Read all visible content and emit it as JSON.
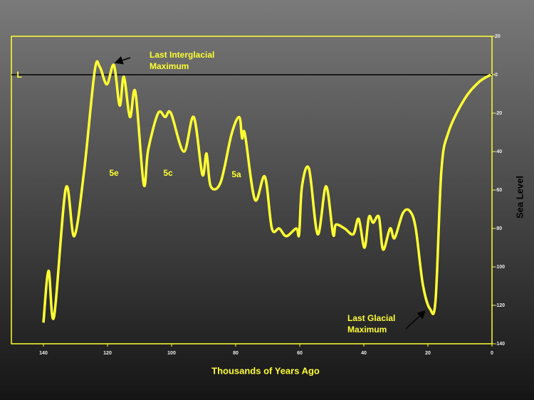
{
  "chart_data": {
    "type": "line",
    "x_label": "Thousands of Years Ago",
    "y_label": "Sea Level",
    "xlim": [
      150,
      0
    ],
    "xticks": [
      140,
      120,
      100,
      80,
      60,
      40,
      20,
      0
    ],
    "ylim": [
      -140,
      20
    ],
    "yticks": [
      20,
      0,
      -20,
      -40,
      -60,
      -80,
      -100,
      -120,
      -140
    ],
    "hline": 0,
    "series": [
      {
        "name": "Sea Level",
        "color": "#ffff33",
        "x": [
          140,
          138.4,
          136.7,
          133,
          130.4,
          127.3,
          124,
          122.4,
          120.2,
          118,
          116.2,
          114.9,
          113,
          111.3,
          108.7,
          107.3,
          104.2,
          102,
          100.2,
          96.2,
          93.1,
          90.4,
          89.1,
          87.8,
          84.7,
          81.3,
          78.9,
          78,
          77.1,
          74,
          70.9,
          68.7,
          66.4,
          64.2,
          61.1,
          60.2,
          59.3,
          57.1,
          54.4,
          51.8,
          49.6,
          48.7,
          46,
          43.3,
          41.6,
          39.8,
          38.4,
          37.1,
          35.3,
          34,
          31.8,
          30.4,
          27.8,
          25.6,
          23.8,
          21.6,
          19.3,
          17.6,
          15.8,
          13.6,
          8.7,
          4.2,
          0.4
        ],
        "values": [
          -129,
          -102,
          -126,
          -59,
          -84,
          -50,
          2,
          4,
          -5,
          5,
          -16,
          -1,
          -22,
          -9,
          -57,
          -39,
          -20,
          -22,
          -20,
          -40,
          -22,
          -52,
          -41,
          -58,
          -56,
          -31,
          -22,
          -33,
          -31,
          -65,
          -53,
          -80,
          -80,
          -84,
          -80,
          -83,
          -58,
          -49,
          -83,
          -58,
          -83,
          -78,
          -80,
          -83,
          -75,
          -90,
          -74,
          -77,
          -74,
          -91,
          -80,
          -85,
          -72,
          -71,
          -80,
          -109,
          -122,
          -117,
          -50,
          -30,
          -13,
          -4,
          0
        ]
      }
    ],
    "annotations": [
      [
        "Last Interglacial",
        "Maximum"
      ],
      [
        "Last Glacial",
        "Maximum"
      ],
      [
        "5e"
      ],
      [
        "5c"
      ],
      [
        "5a"
      ],
      [
        "L"
      ]
    ]
  }
}
